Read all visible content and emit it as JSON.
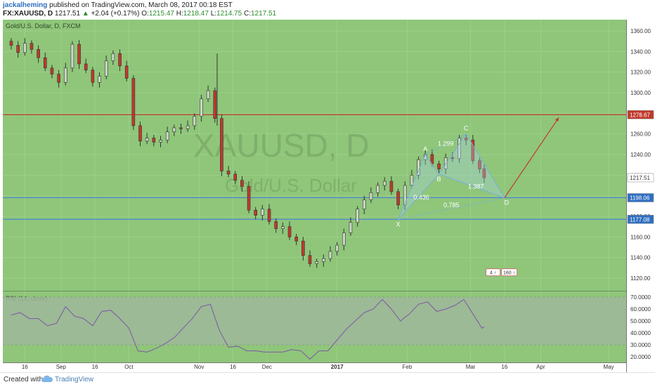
{
  "header": {
    "author": "jackalheming",
    "published_text": "published on TradingView.com, March 08, 2017 00:18 EST",
    "symbol": "FX:XAUUSD, D",
    "last_price": "1217.51",
    "change": "+2.04 (+0.17%)",
    "open_label": "O:",
    "open": "1215.47",
    "high_label": "H:",
    "high": "1218.47",
    "low_label": "L:",
    "low": "1214.75",
    "close_label": "C:",
    "close": "1217.51"
  },
  "footer": {
    "created_with": "Created with",
    "brand": "TradingView"
  },
  "colors": {
    "background": "#8fc67a",
    "band": "#9fb79a",
    "up_candle": "#c8d8c0",
    "down_candle": "#c0392b",
    "rsi_line": "#7e57a8",
    "resistance": "#c0392b",
    "support": "#4a86d4",
    "pattern": "#7ab0d8"
  },
  "chart_data": [
    {
      "type": "candlestick",
      "title": "Gold/U.S. Dollar, D, FXCM",
      "watermark_symbol": "XAUUSD, D",
      "watermark_name": "Gold/U.S. Dollar",
      "ylim": [
        1110,
        1368
      ],
      "y_ticks": [
        "1360.00",
        "1340.00",
        "1320.00",
        "1300.00",
        "1280.00",
        "1260.00",
        "1240.00",
        "1220.00",
        "1200.00",
        "1180.00",
        "1160.00",
        "1140.00",
        "1120.00"
      ],
      "x_ticks": [
        {
          "label": "16",
          "date": "2016-08-16"
        },
        {
          "label": "Sep",
          "date": "2016-09-01"
        },
        {
          "label": "16",
          "date": "2016-09-16"
        },
        {
          "label": "Oct",
          "date": "2016-10-01"
        },
        {
          "label": "Nov",
          "date": "2016-11-01"
        },
        {
          "label": "16",
          "date": "2016-11-16"
        },
        {
          "label": "Dec",
          "date": "2016-12-01"
        },
        {
          "label": "2017",
          "date": "2017-01-01"
        },
        {
          "label": "Feb",
          "date": "2017-02-01"
        },
        {
          "label": "Mar",
          "date": "2017-03-01"
        },
        {
          "label": "16",
          "date": "2017-03-16"
        },
        {
          "label": "Apr",
          "date": "2017-04-01"
        },
        {
          "label": "May",
          "date": "2017-05-01"
        }
      ],
      "closes": [
        {
          "date": "2016-08-10",
          "value": 1346
        },
        {
          "date": "2016-08-13",
          "value": 1339
        },
        {
          "date": "2016-08-16",
          "value": 1348
        },
        {
          "date": "2016-08-19",
          "value": 1342
        },
        {
          "date": "2016-08-22",
          "value": 1334
        },
        {
          "date": "2016-08-25",
          "value": 1324
        },
        {
          "date": "2016-08-28",
          "value": 1318
        },
        {
          "date": "2016-08-31",
          "value": 1310
        },
        {
          "date": "2016-09-03",
          "value": 1324
        },
        {
          "date": "2016-09-06",
          "value": 1347
        },
        {
          "date": "2016-09-09",
          "value": 1328
        },
        {
          "date": "2016-09-12",
          "value": 1322
        },
        {
          "date": "2016-09-15",
          "value": 1310
        },
        {
          "date": "2016-09-18",
          "value": 1316
        },
        {
          "date": "2016-09-21",
          "value": 1331
        },
        {
          "date": "2016-09-24",
          "value": 1338
        },
        {
          "date": "2016-09-27",
          "value": 1326
        },
        {
          "date": "2016-09-30",
          "value": 1314
        },
        {
          "date": "2016-10-03",
          "value": 1268
        },
        {
          "date": "2016-10-06",
          "value": 1253
        },
        {
          "date": "2016-10-09",
          "value": 1256
        },
        {
          "date": "2016-10-12",
          "value": 1252
        },
        {
          "date": "2016-10-15",
          "value": 1254
        },
        {
          "date": "2016-10-18",
          "value": 1262
        },
        {
          "date": "2016-10-21",
          "value": 1266
        },
        {
          "date": "2016-10-24",
          "value": 1265
        },
        {
          "date": "2016-10-27",
          "value": 1268
        },
        {
          "date": "2016-10-30",
          "value": 1277
        },
        {
          "date": "2016-11-02",
          "value": 1294
        },
        {
          "date": "2016-11-05",
          "value": 1302
        },
        {
          "date": "2016-11-08",
          "value": 1275
        },
        {
          "date": "2016-11-11",
          "value": 1224
        },
        {
          "date": "2016-11-14",
          "value": 1221
        },
        {
          "date": "2016-11-17",
          "value": 1215
        },
        {
          "date": "2016-11-20",
          "value": 1209
        },
        {
          "date": "2016-11-23",
          "value": 1186
        },
        {
          "date": "2016-11-26",
          "value": 1181
        },
        {
          "date": "2016-11-29",
          "value": 1187
        },
        {
          "date": "2016-12-02",
          "value": 1175
        },
        {
          "date": "2016-12-05",
          "value": 1168
        },
        {
          "date": "2016-12-08",
          "value": 1170
        },
        {
          "date": "2016-12-11",
          "value": 1160
        },
        {
          "date": "2016-12-14",
          "value": 1156
        },
        {
          "date": "2016-12-17",
          "value": 1142
        },
        {
          "date": "2016-12-20",
          "value": 1134
        },
        {
          "date": "2016-12-23",
          "value": 1136
        },
        {
          "date": "2016-12-26",
          "value": 1139
        },
        {
          "date": "2016-12-29",
          "value": 1146
        },
        {
          "date": "2017-01-01",
          "value": 1152
        },
        {
          "date": "2017-01-04",
          "value": 1164
        },
        {
          "date": "2017-01-07",
          "value": 1174
        },
        {
          "date": "2017-01-10",
          "value": 1187
        },
        {
          "date": "2017-01-13",
          "value": 1196
        },
        {
          "date": "2017-01-16",
          "value": 1203
        },
        {
          "date": "2017-01-19",
          "value": 1210
        },
        {
          "date": "2017-01-22",
          "value": 1214
        },
        {
          "date": "2017-01-25",
          "value": 1204
        },
        {
          "date": "2017-01-28",
          "value": 1191
        },
        {
          "date": "2017-01-31",
          "value": 1210
        },
        {
          "date": "2017-02-03",
          "value": 1220
        },
        {
          "date": "2017-02-06",
          "value": 1235
        },
        {
          "date": "2017-02-09",
          "value": 1240
        },
        {
          "date": "2017-02-12",
          "value": 1231
        },
        {
          "date": "2017-02-15",
          "value": 1226
        },
        {
          "date": "2017-02-18",
          "value": 1237
        },
        {
          "date": "2017-02-21",
          "value": 1236
        },
        {
          "date": "2017-02-24",
          "value": 1256
        },
        {
          "date": "2017-02-27",
          "value": 1254
        },
        {
          "date": "2017-03-02",
          "value": 1234
        },
        {
          "date": "2017-03-05",
          "value": 1226
        },
        {
          "date": "2017-03-07",
          "value": 1217.51
        }
      ],
      "horizontal_lines": [
        {
          "value": 1278.67,
          "label": "1278.67",
          "color": "#c0392b"
        },
        {
          "value": 1198.06,
          "label": "1198.06",
          "color": "#4a86d4"
        },
        {
          "value": 1177.08,
          "label": "1177.08",
          "color": "#4a86d4"
        }
      ],
      "last_price_label": "1217.51",
      "pattern": {
        "points": [
          {
            "name": "X",
            "date": "2017-01-28",
            "value": 1177
          },
          {
            "name": "A",
            "date": "2017-02-09",
            "value": 1240
          },
          {
            "name": "B",
            "date": "2017-02-15",
            "value": 1221
          },
          {
            "name": "C",
            "date": "2017-02-27",
            "value": 1260
          },
          {
            "name": "D",
            "date": "2017-03-16",
            "value": 1198
          }
        ],
        "ratios": [
          "1.299",
          "0.436",
          "1.387",
          "0.785"
        ]
      },
      "projection": {
        "from_date": "2017-03-16",
        "from_value": 1198,
        "to_date": "2017-04-09",
        "to_value": 1276
      },
      "badges": [
        "4 ↑",
        "160 ↑"
      ]
    },
    {
      "type": "line",
      "title": "RSI (14, close)",
      "ylim": [
        15,
        75
      ],
      "y_ticks": [
        "70.0000",
        "60.0000",
        "50.0000",
        "40.0000",
        "30.0000",
        "20.0000"
      ],
      "band": [
        30,
        70
      ],
      "values": [
        {
          "date": "2016-08-10",
          "value": 55
        },
        {
          "date": "2016-08-14",
          "value": 57
        },
        {
          "date": "2016-08-18",
          "value": 52
        },
        {
          "date": "2016-08-22",
          "value": 52
        },
        {
          "date": "2016-08-26",
          "value": 46
        },
        {
          "date": "2016-08-30",
          "value": 48
        },
        {
          "date": "2016-09-03",
          "value": 62
        },
        {
          "date": "2016-09-07",
          "value": 54
        },
        {
          "date": "2016-09-11",
          "value": 52
        },
        {
          "date": "2016-09-15",
          "value": 46
        },
        {
          "date": "2016-09-19",
          "value": 58
        },
        {
          "date": "2016-09-23",
          "value": 59
        },
        {
          "date": "2016-09-27",
          "value": 52
        },
        {
          "date": "2016-10-01",
          "value": 44
        },
        {
          "date": "2016-10-05",
          "value": 25
        },
        {
          "date": "2016-10-09",
          "value": 24
        },
        {
          "date": "2016-10-13",
          "value": 27
        },
        {
          "date": "2016-10-17",
          "value": 31
        },
        {
          "date": "2016-10-21",
          "value": 36
        },
        {
          "date": "2016-10-25",
          "value": 44
        },
        {
          "date": "2016-10-29",
          "value": 52
        },
        {
          "date": "2016-11-02",
          "value": 62
        },
        {
          "date": "2016-11-06",
          "value": 64
        },
        {
          "date": "2016-11-10",
          "value": 42
        },
        {
          "date": "2016-11-14",
          "value": 28
        },
        {
          "date": "2016-11-18",
          "value": 29
        },
        {
          "date": "2016-11-22",
          "value": 25
        },
        {
          "date": "2016-11-26",
          "value": 25
        },
        {
          "date": "2016-11-30",
          "value": 24
        },
        {
          "date": "2016-12-04",
          "value": 24
        },
        {
          "date": "2016-12-08",
          "value": 24
        },
        {
          "date": "2016-12-12",
          "value": 26
        },
        {
          "date": "2016-12-16",
          "value": 25
        },
        {
          "date": "2016-12-20",
          "value": 18
        },
        {
          "date": "2016-12-24",
          "value": 25
        },
        {
          "date": "2016-12-28",
          "value": 25
        },
        {
          "date": "2017-01-01",
          "value": 34
        },
        {
          "date": "2017-01-05",
          "value": 43
        },
        {
          "date": "2017-01-09",
          "value": 50
        },
        {
          "date": "2017-01-13",
          "value": 57
        },
        {
          "date": "2017-01-17",
          "value": 60
        },
        {
          "date": "2017-01-21",
          "value": 68
        },
        {
          "date": "2017-01-25",
          "value": 60
        },
        {
          "date": "2017-01-29",
          "value": 50
        },
        {
          "date": "2017-02-02",
          "value": 56
        },
        {
          "date": "2017-02-06",
          "value": 64
        },
        {
          "date": "2017-02-10",
          "value": 66
        },
        {
          "date": "2017-02-14",
          "value": 58
        },
        {
          "date": "2017-02-18",
          "value": 60
        },
        {
          "date": "2017-02-22",
          "value": 63
        },
        {
          "date": "2017-02-26",
          "value": 68
        },
        {
          "date": "2017-03-02",
          "value": 56
        },
        {
          "date": "2017-03-06",
          "value": 44
        },
        {
          "date": "2017-03-07",
          "value": 45
        }
      ]
    }
  ]
}
